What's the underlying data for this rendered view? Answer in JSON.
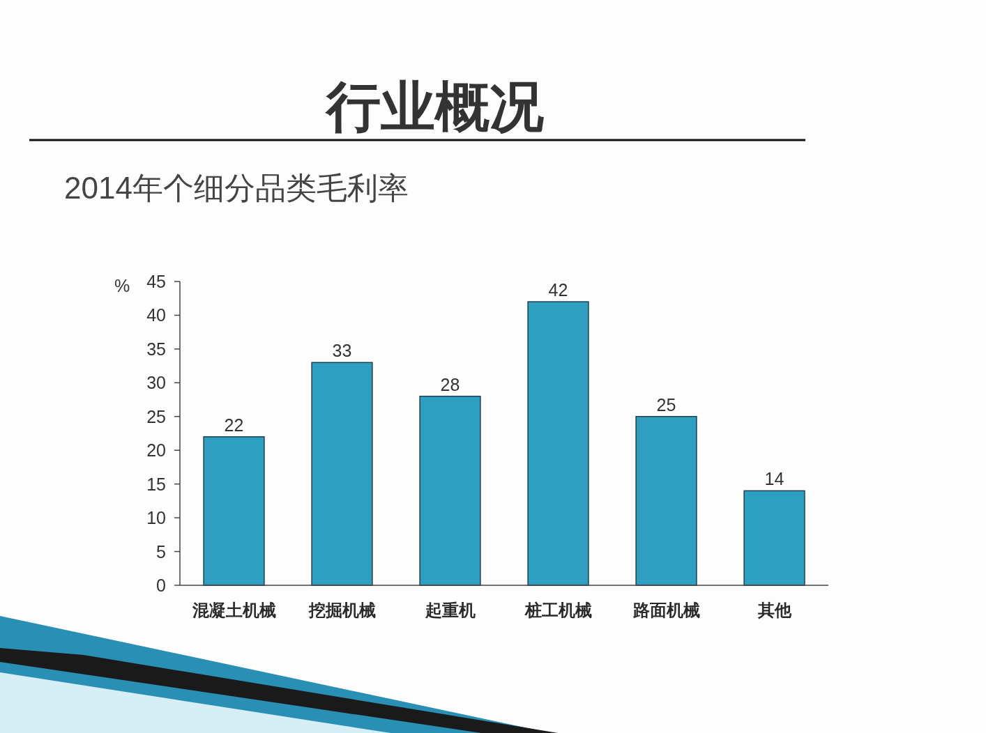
{
  "chart_data": {
    "type": "bar",
    "title": "行业概况",
    "subtitle": "2014年个细分品类毛利率",
    "ylabel": "%",
    "categories": [
      "混凝土机械",
      "挖掘机械",
      "起重机",
      "桩工机械",
      "路面机械",
      "其他"
    ],
    "values": [
      22,
      33,
      28,
      42,
      25,
      14
    ],
    "color": "#2e9fc1",
    "ylim": [
      0,
      45
    ],
    "yticks": [
      0,
      5,
      10,
      15,
      20,
      25,
      30,
      35,
      40,
      45
    ],
    "data_labels": true
  }
}
